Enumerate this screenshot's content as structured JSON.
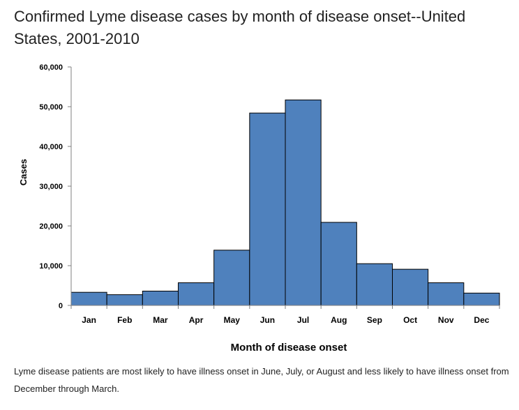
{
  "page": {
    "title": "Confirmed Lyme disease cases by month of disease onset--United States, 2001-2010",
    "caption": "Lyme disease patients are most likely to have illness onset in June, July, or August and less likely to have illness onset from December through March."
  },
  "chart_data": {
    "type": "bar",
    "title": "Confirmed Lyme disease cases by month of disease onset--United States, 2001-2010",
    "xlabel": "Month of disease onset",
    "ylabel": "Cases",
    "categories": [
      "Jan",
      "Feb",
      "Mar",
      "Apr",
      "May",
      "Jun",
      "Jul",
      "Aug",
      "Sep",
      "Oct",
      "Nov",
      "Dec"
    ],
    "values": [
      3300,
      2700,
      3600,
      5700,
      13900,
      48400,
      51700,
      20900,
      10500,
      9100,
      5700,
      3100
    ],
    "ylim": [
      0,
      60000
    ],
    "yticks": [
      0,
      10000,
      20000,
      30000,
      40000,
      50000,
      60000
    ],
    "ytick_labels": [
      "0",
      "10,000",
      "20,000",
      "30,000",
      "40,000",
      "50,000",
      "60,000"
    ],
    "grid": false,
    "bar_color": "#4f81bd",
    "bar_edge_color": "#000000"
  }
}
